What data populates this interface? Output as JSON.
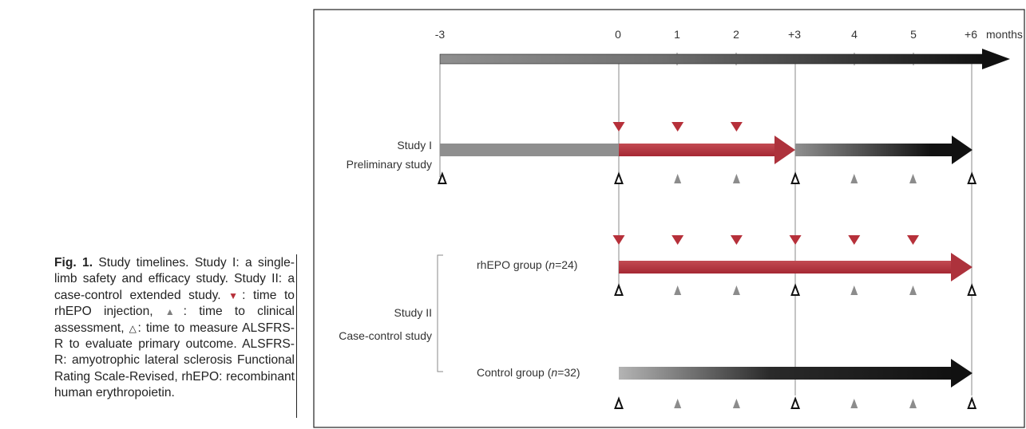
{
  "caption": {
    "fig_label": "Fig. 1.",
    "part1": " Study timelines. Study I: a single-limb safety and efficacy study. Study II: a case-control extended study.",
    "part2": ": time to rhEPO injection,",
    "part3": ": time to clinical assessment,",
    "part4": ": time to measure ALSFRS-R to evaluate primary outcome. ALSFRS-R: amyotrophic lateral sclerosis Functional Rating Scale-Revised, rhEPO: recombinant human erythropoietin."
  },
  "axis": {
    "ticks": [
      "-3",
      "0",
      "1",
      "2",
      "+3",
      "4",
      "5",
      "+6"
    ],
    "unit": "months"
  },
  "study1": {
    "title": "Study I",
    "subtitle": "Preliminary study"
  },
  "study2": {
    "title": "Study II",
    "subtitle": "Case-control study",
    "rhepo_prefix": "rhEPO group (",
    "rhepo_n": "n",
    "rhepo_suffix": "=24)",
    "control_prefix": "Control group (",
    "control_n": "n",
    "control_suffix": "=32)"
  },
  "colors": {
    "injection": "#b6303a",
    "clinical_assessment": "#8c8c8c",
    "outline_marker": "#111111",
    "grey_bar": "#8f8f8f",
    "dark_bar": "#111111"
  },
  "icons": {
    "injection": "down-triangle-filled",
    "clinical_assessment": "up-triangle-filled",
    "primary_outcome": "up-triangle-outline"
  },
  "markers": {
    "study1_injection_months": [
      0,
      1,
      2
    ],
    "study1_assessment_months": [
      1,
      2,
      4,
      5
    ],
    "study1_outcome_months": [
      -3,
      0,
      3,
      6
    ],
    "rhepo_injection_months": [
      0,
      1,
      2,
      3,
      4,
      5
    ],
    "rhepo_assessment_months": [
      1,
      2,
      4,
      5
    ],
    "rhepo_outcome_months": [
      0,
      3,
      6
    ],
    "control_assessment_months": [
      1,
      2,
      4,
      5
    ],
    "control_outcome_months": [
      0,
      3,
      6
    ]
  }
}
